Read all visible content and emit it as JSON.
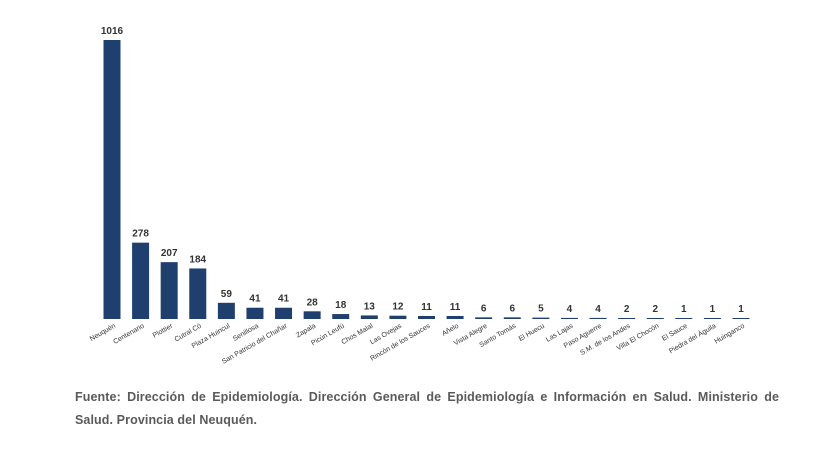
{
  "chart_data": {
    "type": "bar",
    "title": "",
    "xlabel": "",
    "ylabel": "",
    "ylim": [
      0,
      1016
    ],
    "grid": false,
    "bar_color": "#1f3f6e",
    "categories": [
      "Neuquén",
      "Centenario",
      "Plottier",
      "Cutral Có",
      "Plaza Huincul",
      "Senillosa",
      "San Patricio del Chañar",
      "Zapala",
      "Picún Leufú",
      "Chos Malal",
      "Las Ovejas",
      "Rincón de los Sauces",
      "Añelo",
      "Vista Alegre",
      "Santo Tomás",
      "El Huecu",
      "Las Lajas",
      "Paso Aguerre",
      "S.M. de los Andes",
      "Villa El Chocón",
      "El Sauce",
      "Piedra del Águila",
      "Huinganco"
    ],
    "values": [
      1016,
      278,
      207,
      184,
      59,
      41,
      41,
      28,
      18,
      13,
      12,
      11,
      11,
      6,
      6,
      5,
      4,
      4,
      2,
      2,
      1,
      1,
      1
    ]
  },
  "source": "Fuente: Dirección de Epidemiología. Dirección General de Epidemiología e Información en Salud. Ministerio de Salud. Provincia del Neuquén."
}
